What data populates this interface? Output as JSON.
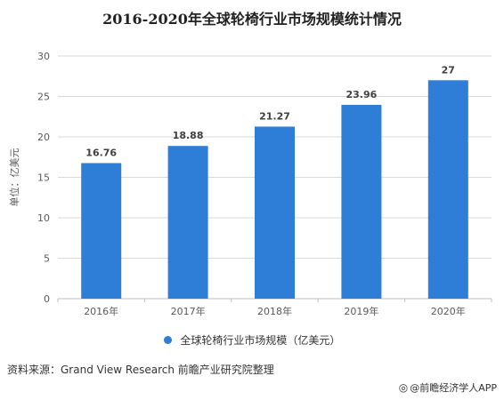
{
  "header": {
    "title": "2016-2020年全球轮椅行业市场规模统计情况"
  },
  "chart_data": {
    "type": "bar",
    "title": "2016-2020年全球轮椅行业市场规模统计情况",
    "categories": [
      "2016年",
      "2017年",
      "2018年",
      "2019年",
      "2020年"
    ],
    "series": [
      {
        "name": "全球轮椅行业市场规模（亿美元）",
        "values": [
          16.76,
          18.88,
          21.27,
          23.96,
          27
        ]
      }
    ],
    "value_labels": [
      "16.76",
      "18.88",
      "21.27",
      "23.96",
      "27"
    ],
    "ylabel": "单位：亿美元",
    "xlabel": "",
    "ylim": [
      0,
      30
    ],
    "yticks": [
      0,
      5,
      10,
      15,
      20,
      25,
      30
    ],
    "grid": true,
    "legend": "bottom",
    "colors": {
      "bar": "#2e7dd7",
      "grid": "#d9d9d9",
      "axis": "#bfbfbf",
      "tick": "#595959",
      "label": "#404040"
    }
  },
  "legend": {
    "label": "全球轮椅行业市场规模（亿美元）"
  },
  "footer": {
    "source": "资料来源：Grand View Research 前瞻产业研究院整理",
    "credit": "@前瞻经济学人APP",
    "credit_icon": "weibo-icon"
  }
}
